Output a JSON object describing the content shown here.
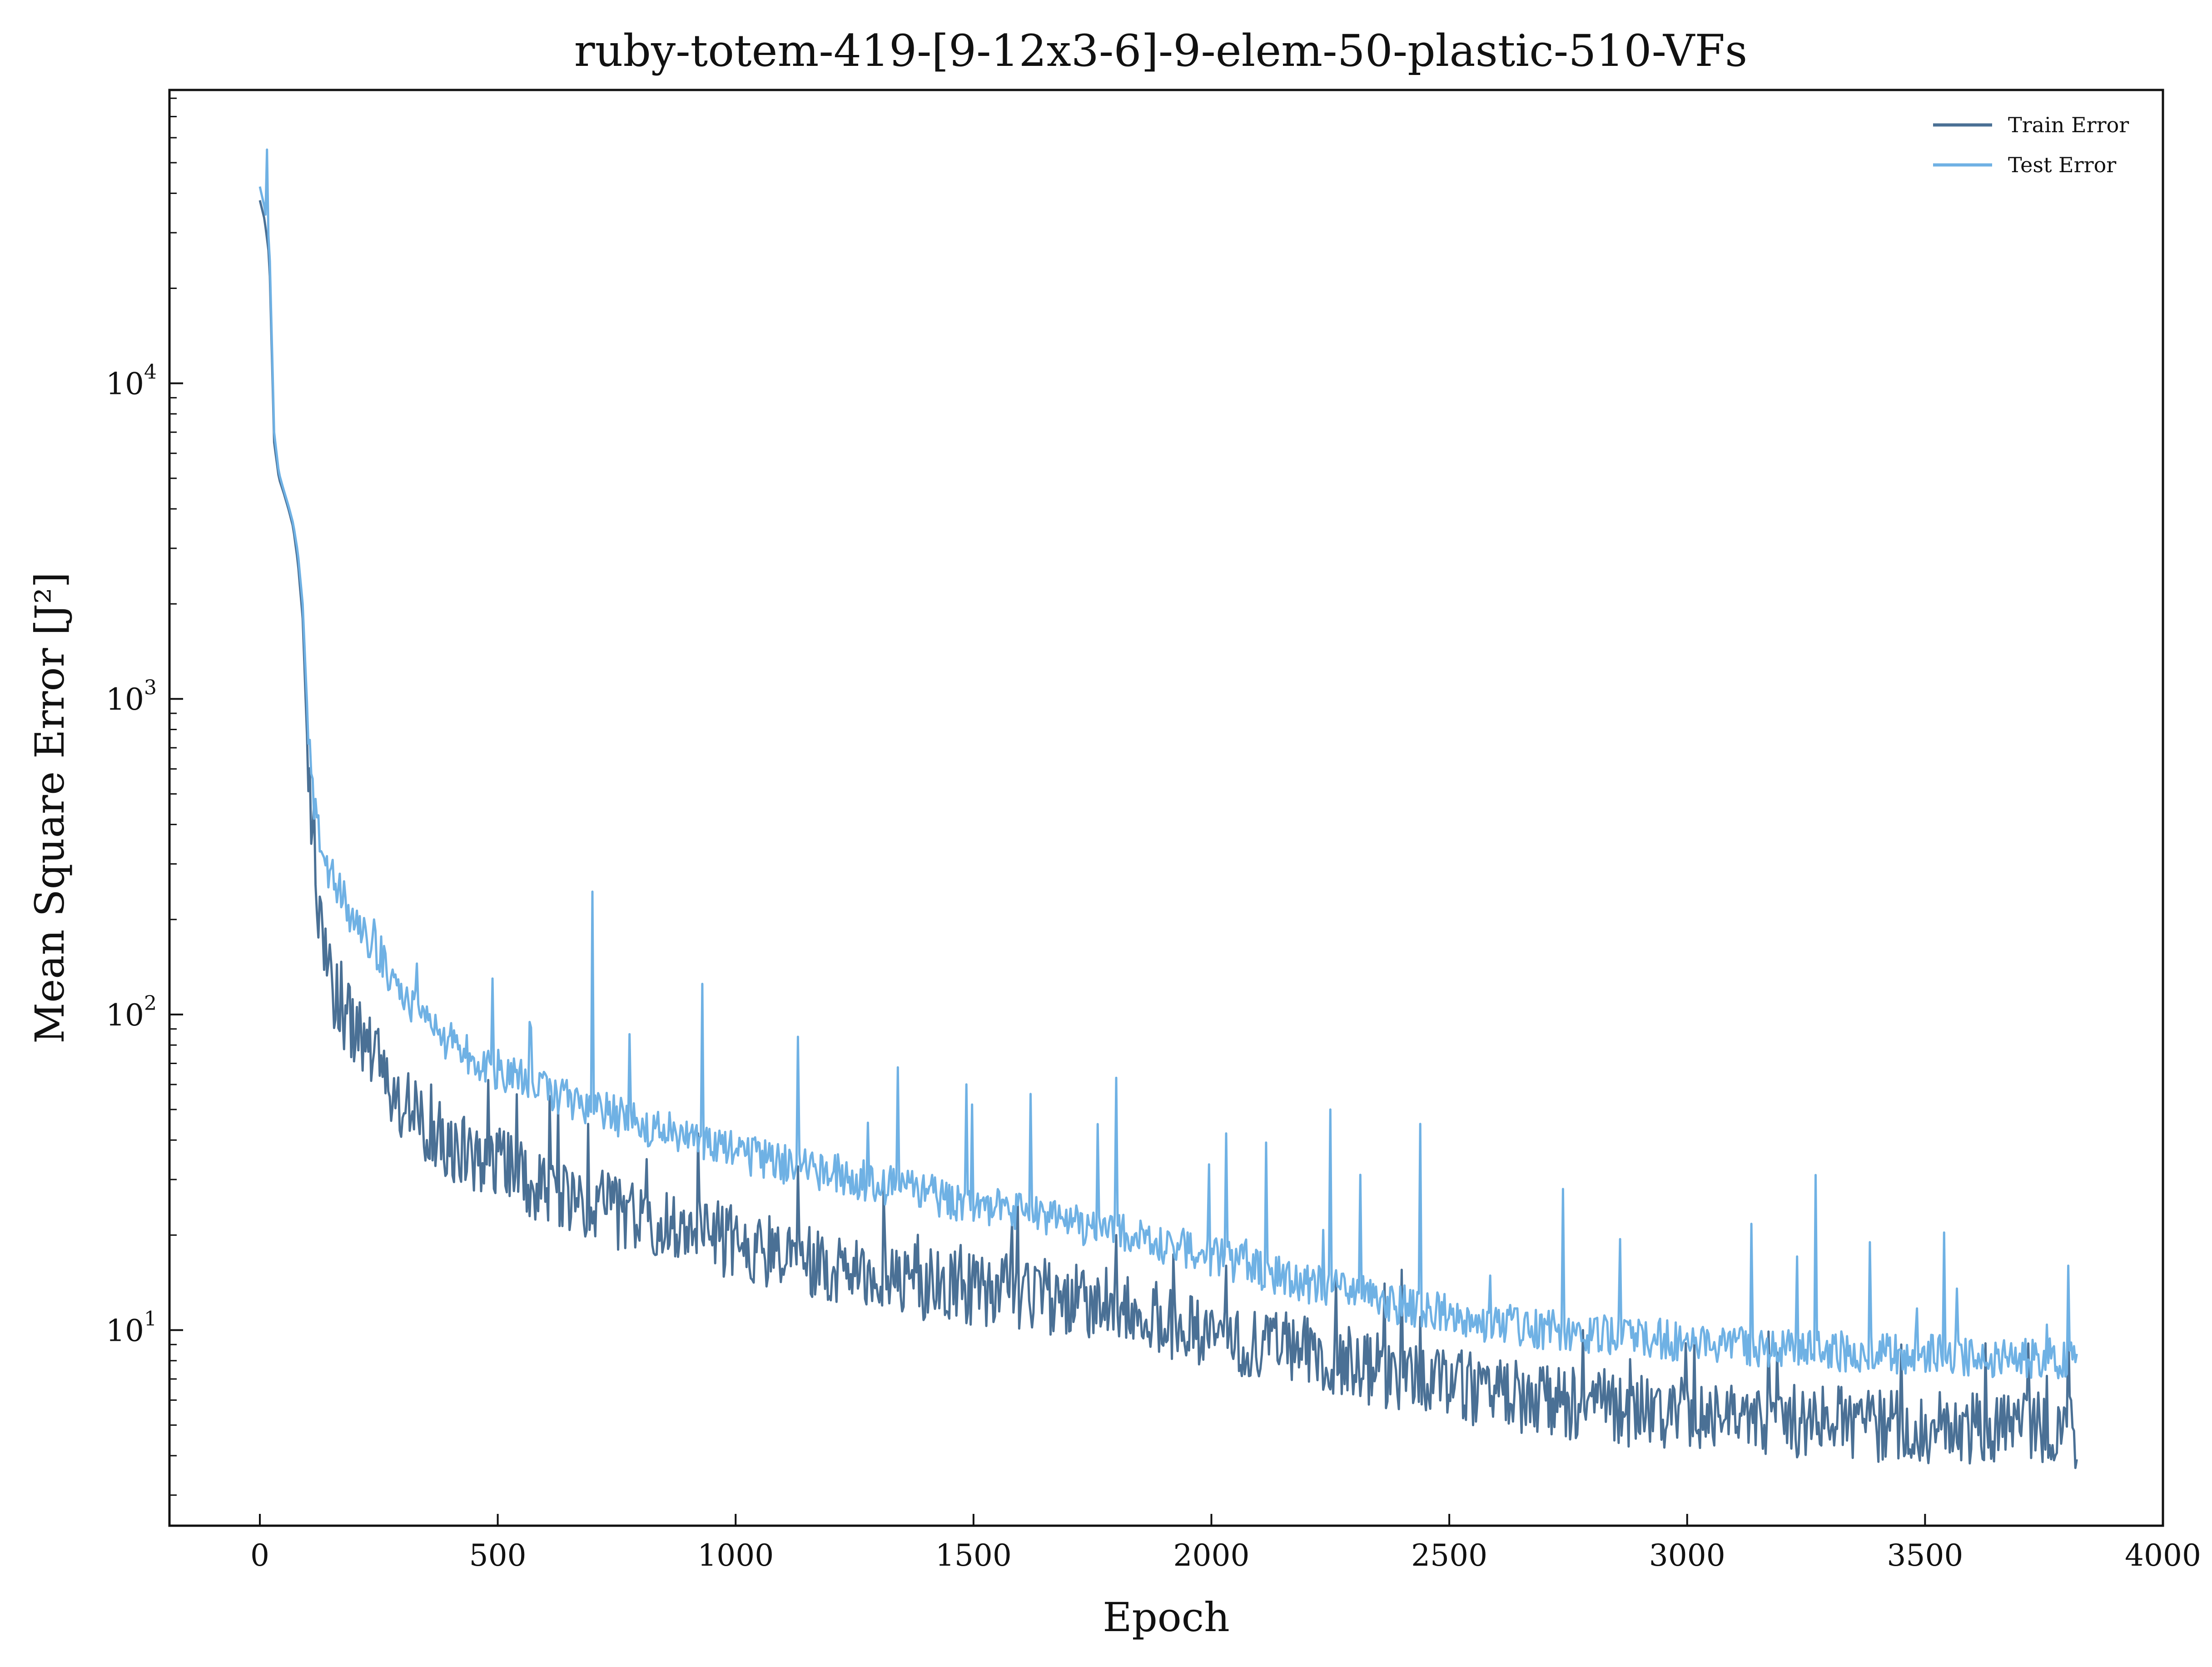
{
  "chart_data": {
    "type": "line",
    "title": "ruby-totem-419-[9-12x3-6]-9-elem-50-plastic-510-VFs",
    "xlabel": "Epoch",
    "ylabel": "Mean Square Error [J²]",
    "xlim": [
      -190,
      4000
    ],
    "ylim": [
      2.4,
      85000
    ],
    "yscale": "log",
    "grid": false,
    "legend_position": "top-right",
    "x_ticks": [
      0,
      500,
      1000,
      1500,
      2000,
      2500,
      3000,
      3500,
      4000
    ],
    "y_ticks": [
      {
        "value": 10,
        "base": "10",
        "exp": "1"
      },
      {
        "value": 100,
        "base": "10",
        "exp": "2"
      },
      {
        "value": 1000,
        "base": "10",
        "exp": "3"
      },
      {
        "value": 10000,
        "base": "10",
        "exp": "4"
      }
    ],
    "series": [
      {
        "name": "Train Error",
        "color": "#4a7095",
        "x": [
          0,
          10,
          20,
          30,
          40,
          50,
          60,
          70,
          80,
          90,
          100,
          110,
          120,
          130,
          140,
          150,
          175,
          200,
          250,
          300,
          350,
          400,
          450,
          500,
          600,
          700,
          800,
          900,
          1000,
          1100,
          1200,
          1300,
          1400,
          1500,
          1600,
          1700,
          1800,
          1900,
          2000,
          2200,
          2400,
          2600,
          2800,
          3000,
          3200,
          3400,
          3600,
          3820
        ],
        "values": [
          38000,
          33000,
          25000,
          6500,
          5000,
          4500,
          4000,
          3500,
          2700,
          1800,
          700,
          300,
          200,
          160,
          130,
          115,
          95,
          80,
          64,
          48,
          41,
          36,
          33,
          31,
          26,
          23,
          20.5,
          19,
          17.5,
          16,
          15,
          14,
          13,
          12.5,
          12,
          11.5,
          11,
          10,
          9,
          7.8,
          6.6,
          5.8,
          5.3,
          5.0,
          4.8,
          4.6,
          4.5,
          4.4
        ],
        "spikes": [
          [
            250,
            90
          ],
          [
            360,
            60
          ],
          [
            410,
            45
          ],
          [
            480,
            62
          ],
          [
            690,
            45
          ],
          [
            920,
            42
          ],
          [
            1130,
            33
          ],
          [
            1310,
            28
          ],
          [
            1580,
            22
          ],
          [
            1800,
            20
          ],
          [
            2030,
            16
          ],
          [
            2440,
            11
          ],
          [
            2780,
            10
          ],
          [
            3190,
            8.5
          ],
          [
            3450,
            9
          ],
          [
            3800,
            11
          ]
        ]
      },
      {
        "name": "Test Error",
        "color": "#6fb1e4",
        "x": [
          0,
          10,
          20,
          30,
          40,
          50,
          60,
          70,
          80,
          90,
          100,
          110,
          120,
          130,
          140,
          150,
          175,
          200,
          250,
          300,
          350,
          400,
          450,
          500,
          600,
          700,
          800,
          900,
          1000,
          1100,
          1200,
          1300,
          1400,
          1500,
          1600,
          1700,
          1800,
          1900,
          2000,
          2200,
          2400,
          2600,
          2800,
          3000,
          3200,
          3400,
          3600,
          3820
        ],
        "values": [
          42000,
          36000,
          28000,
          7000,
          5200,
          4600,
          4100,
          3600,
          2900,
          2000,
          900,
          500,
          400,
          330,
          290,
          260,
          220,
          190,
          150,
          110,
          90,
          78,
          70,
          64,
          55,
          48,
          43,
          39,
          35,
          32,
          30,
          28,
          26,
          24,
          22.5,
          21,
          19.5,
          18,
          16.5,
          13.5,
          11.5,
          10,
          9.3,
          8.8,
          8.4,
          8.1,
          7.9,
          7.8
        ],
        "spikes": [
          [
            15,
            55000
          ],
          [
            240,
            200
          ],
          [
            330,
            145
          ],
          [
            490,
            130
          ],
          [
            700,
            245
          ],
          [
            930,
            125
          ],
          [
            1130,
            85
          ],
          [
            1340,
            68
          ],
          [
            1620,
            56
          ],
          [
            1800,
            63
          ],
          [
            2030,
            42
          ],
          [
            2250,
            50
          ],
          [
            2440,
            45
          ],
          [
            2740,
            28
          ],
          [
            3270,
            31
          ],
          [
            3800,
            16
          ]
        ]
      }
    ]
  }
}
